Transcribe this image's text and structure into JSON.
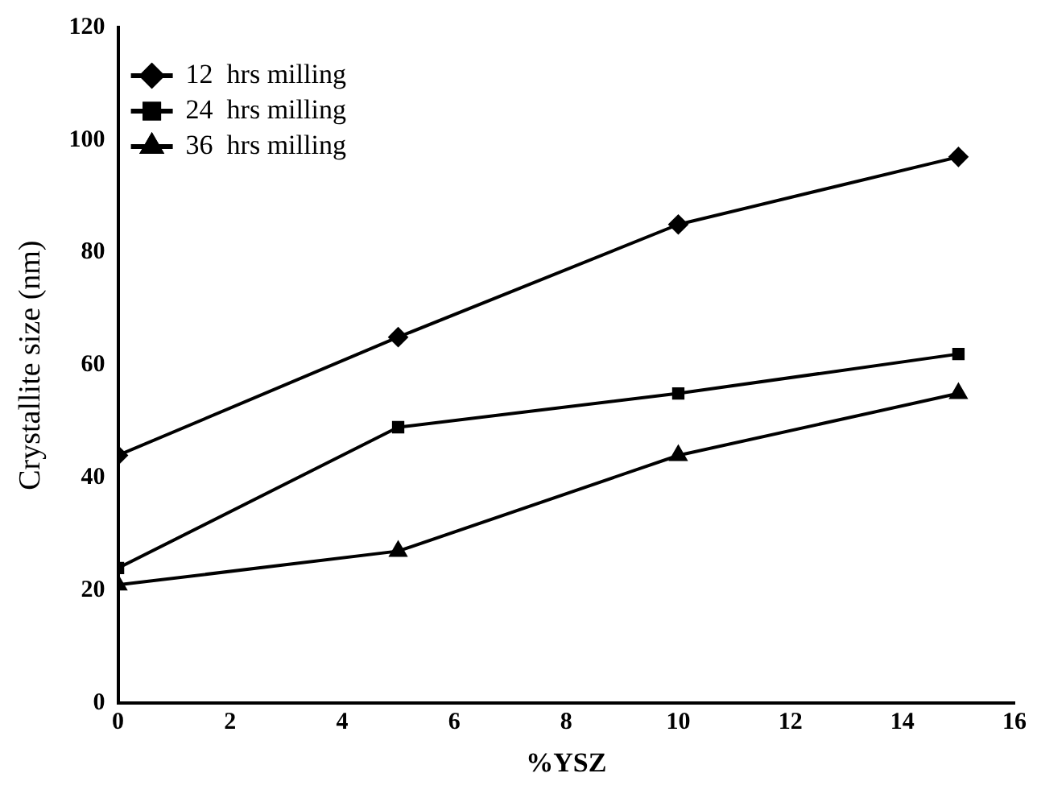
{
  "chart_data": {
    "type": "line",
    "xlabel": "%YSZ",
    "ylabel": "Crystallite size (nm)",
    "x": [
      0,
      5,
      10,
      15
    ],
    "series": [
      {
        "name": "12  hrs milling",
        "color": "#000000",
        "marker": "diamond",
        "values": [
          44,
          65,
          85,
          97
        ]
      },
      {
        "name": "24  hrs milling",
        "color": "#000000",
        "marker": "square",
        "values": [
          24,
          49,
          55,
          62
        ]
      },
      {
        "name": "36  hrs milling",
        "color": "#000000",
        "marker": "triangle",
        "values": [
          21,
          27,
          44,
          55
        ]
      }
    ],
    "xlim": [
      0,
      16
    ],
    "xticks": [
      0,
      2,
      4,
      6,
      8,
      10,
      12,
      14,
      16
    ],
    "ylim": [
      0,
      120
    ],
    "yticks": [
      0,
      20,
      40,
      60,
      80,
      100,
      120
    ],
    "grid": false,
    "legend": "top left",
    "line_style": "solid"
  }
}
